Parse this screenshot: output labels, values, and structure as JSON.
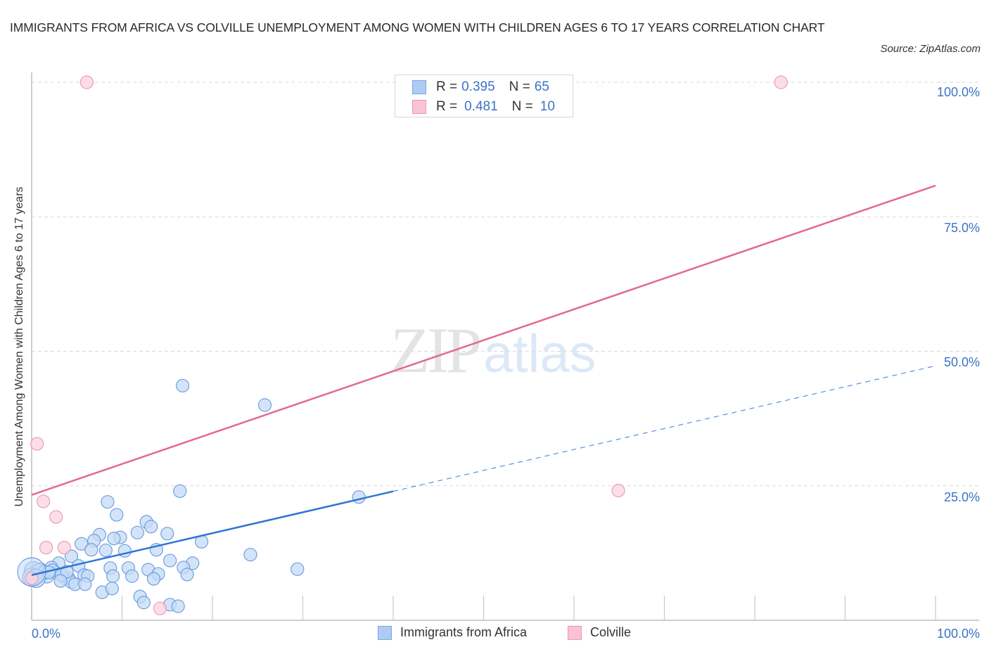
{
  "header": {
    "title": "IMMIGRANTS FROM AFRICA VS COLVILLE UNEMPLOYMENT AMONG WOMEN WITH CHILDREN AGES 6 TO 17 YEARS CORRELATION CHART",
    "source": "Source: ZipAtlas.com"
  },
  "watermark": {
    "zip": "ZIP",
    "atlas": "atlas"
  },
  "legend_top": {
    "rows": [
      {
        "series": "Immigrants from Africa",
        "r_label": "R =",
        "r_value": "0.395",
        "n_label": "N =",
        "n_value": "65",
        "color": "#aeccf3",
        "border": "#7aa6e2"
      },
      {
        "series": "Colville",
        "r_label": "R =",
        "r_value": "0.481",
        "n_label": "N =",
        "n_value": "10",
        "color": "#f9c3d3",
        "border": "#ec97b2"
      }
    ]
  },
  "legend_bottom": [
    {
      "label": "Immigrants from Africa",
      "color": "#aeccf3",
      "border": "#7aa6e2"
    },
    {
      "label": "Colville",
      "color": "#f9c3d3",
      "border": "#ec97b2"
    }
  ],
  "axes": {
    "ylabel": "Unemployment Among Women with Children Ages 6 to 17 years",
    "yticks": [
      "100.0%",
      "75.0%",
      "50.0%",
      "25.0%"
    ],
    "xticks": [
      "0.0%",
      "100.0%"
    ]
  },
  "colors": {
    "blue_point_fill": "#c6dbf6",
    "blue_point_stroke": "#6f9fe0",
    "blue_line": "#2f74d6",
    "pink_point_fill": "#fbd3df",
    "pink_point_stroke": "#ec9bb5",
    "pink_line": "#e4698f",
    "grid": "#d9d9d9",
    "axis_text": "#3b73c8"
  },
  "chart_data": {
    "type": "scatter",
    "title": "IMMIGRANTS FROM AFRICA VS COLVILLE UNEMPLOYMENT AMONG WOMEN WITH CHILDREN AGES 6 TO 17 YEARS CORRELATION CHART",
    "xlabel": "",
    "ylabel": "Unemployment Among Women with Children Ages 6 to 17 years",
    "xlim": [
      0,
      100
    ],
    "ylim": [
      0,
      100
    ],
    "grid": true,
    "legend_position": "bottom",
    "series": [
      {
        "name": "Immigrants from Africa",
        "R": 0.395,
        "N": 65,
        "trend": {
          "x0": 0,
          "y0": 8.4,
          "x1": 100,
          "y1": 47.3,
          "solid_until_x": 40
        },
        "points": [
          [
            16.7,
            43.6
          ],
          [
            25.8,
            40.0
          ],
          [
            16.4,
            24.0
          ],
          [
            36.2,
            22.9
          ],
          [
            8.4,
            22.0
          ],
          [
            9.4,
            19.6
          ],
          [
            12.7,
            18.3
          ],
          [
            13.2,
            17.4
          ],
          [
            7.5,
            15.9
          ],
          [
            15.0,
            16.1
          ],
          [
            11.7,
            16.3
          ],
          [
            9.8,
            15.4
          ],
          [
            9.1,
            15.2
          ],
          [
            5.5,
            14.2
          ],
          [
            6.9,
            14.8
          ],
          [
            18.8,
            14.6
          ],
          [
            8.2,
            13.0
          ],
          [
            10.3,
            12.9
          ],
          [
            13.8,
            13.1
          ],
          [
            6.6,
            13.1
          ],
          [
            24.2,
            12.2
          ],
          [
            4.4,
            11.9
          ],
          [
            15.3,
            11.1
          ],
          [
            3.0,
            10.6
          ],
          [
            17.8,
            10.6
          ],
          [
            8.7,
            9.7
          ],
          [
            10.7,
            9.7
          ],
          [
            16.8,
            9.8
          ],
          [
            12.9,
            9.4
          ],
          [
            14.0,
            8.6
          ],
          [
            5.2,
            10.1
          ],
          [
            1.0,
            9.5
          ],
          [
            2.2,
            9.8
          ],
          [
            2.7,
            8.8
          ],
          [
            1.3,
            8.6
          ],
          [
            0.4,
            8.4
          ],
          [
            1.7,
            8.1
          ],
          [
            3.7,
            7.8
          ],
          [
            4.1,
            7.8
          ],
          [
            5.8,
            8.4
          ],
          [
            6.2,
            8.2
          ],
          [
            9.0,
            8.2
          ],
          [
            11.1,
            8.2
          ],
          [
            17.2,
            8.5
          ],
          [
            29.4,
            9.5
          ],
          [
            13.5,
            7.7
          ],
          [
            4.4,
            7.1
          ],
          [
            4.8,
            6.7
          ],
          [
            5.9,
            6.7
          ],
          [
            7.8,
            5.2
          ],
          [
            8.9,
            5.9
          ],
          [
            12.0,
            4.4
          ],
          [
            12.4,
            3.3
          ],
          [
            15.3,
            2.9
          ],
          [
            16.2,
            2.6
          ],
          [
            0.2,
            9.2
          ],
          [
            0.8,
            8.8
          ],
          [
            1.4,
            9.0
          ],
          [
            2.3,
            9.3
          ],
          [
            3.3,
            8.4
          ],
          [
            0.0,
            8.0
          ],
          [
            0.5,
            7.8
          ],
          [
            1.9,
            8.9
          ],
          [
            3.9,
            9.0
          ],
          [
            3.2,
            7.3
          ]
        ]
      },
      {
        "name": "Colville",
        "R": 0.481,
        "N": 10,
        "trend": {
          "x0": 0,
          "y0": 23.3,
          "x1": 100,
          "y1": 80.8
        },
        "points": [
          [
            6.1,
            100.0
          ],
          [
            82.9,
            100.0
          ],
          [
            0.6,
            32.8
          ],
          [
            1.3,
            22.1
          ],
          [
            2.7,
            19.2
          ],
          [
            64.9,
            24.1
          ],
          [
            1.6,
            13.5
          ],
          [
            3.6,
            13.5
          ],
          [
            14.2,
            2.2
          ],
          [
            0.0,
            7.8
          ]
        ]
      }
    ]
  }
}
